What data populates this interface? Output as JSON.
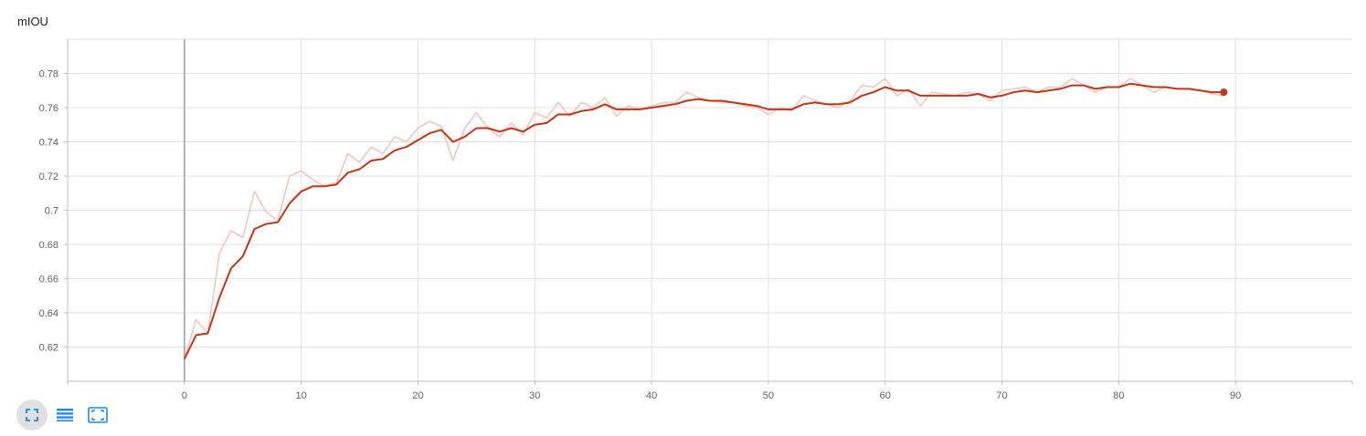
{
  "title": "mIOU",
  "toolbar": {
    "buttons": [
      {
        "name": "fit-domain",
        "icon": "fit-screen-icon",
        "active": true
      },
      {
        "name": "toggle-log",
        "icon": "lines-icon",
        "active": false
      },
      {
        "name": "toggle-expand",
        "icon": "expand-box-icon",
        "active": false
      }
    ]
  },
  "colors": {
    "smoothed": "#c23616",
    "raw": "#f2c7bd",
    "grid": "#e0e0e0",
    "axis": "#bdbdbd",
    "zero_line": "#9e9e9e",
    "tick_text": "#616161",
    "toolbar_icon": "#1e88e5"
  },
  "chart_data": {
    "type": "line",
    "title": "mIOU",
    "xlabel": "",
    "ylabel": "",
    "xlim": [
      -10,
      100
    ],
    "ylim": [
      0.6,
      0.8
    ],
    "x_ticks": [
      "0",
      "10",
      "20",
      "30",
      "40",
      "50",
      "60",
      "70",
      "80",
      "90"
    ],
    "y_ticks": [
      "0.62",
      "0.64",
      "0.66",
      "0.68",
      "0.7",
      "0.72",
      "0.74",
      "0.76",
      "0.78"
    ],
    "grid": true,
    "legend": "none",
    "series": [
      {
        "role": "raw",
        "x": [
          0,
          1,
          2,
          3,
          4,
          5,
          6,
          7,
          8,
          9,
          10,
          11,
          12,
          13,
          14,
          15,
          16,
          17,
          18,
          19,
          20,
          21,
          22,
          23,
          24,
          25,
          26,
          27,
          28,
          29,
          30,
          31,
          32,
          33,
          34,
          35,
          36,
          37,
          38,
          39,
          40,
          41,
          42,
          43,
          44,
          45,
          46,
          47,
          48,
          49,
          50,
          51,
          52,
          53,
          54,
          55,
          56,
          57,
          58,
          59,
          60,
          61,
          62,
          63,
          64,
          65,
          66,
          67,
          68,
          69,
          70,
          71,
          72,
          73,
          74,
          75,
          76,
          77,
          78,
          79,
          80,
          81,
          82,
          83,
          84,
          85,
          86,
          87,
          88,
          89
        ],
        "values": [
          0.613,
          0.636,
          0.628,
          0.675,
          0.688,
          0.684,
          0.711,
          0.699,
          0.694,
          0.72,
          0.723,
          0.718,
          0.714,
          0.716,
          0.733,
          0.728,
          0.737,
          0.733,
          0.743,
          0.74,
          0.748,
          0.752,
          0.749,
          0.729,
          0.748,
          0.757,
          0.748,
          0.743,
          0.751,
          0.744,
          0.757,
          0.754,
          0.763,
          0.755,
          0.763,
          0.76,
          0.766,
          0.755,
          0.761,
          0.759,
          0.761,
          0.763,
          0.763,
          0.769,
          0.766,
          0.764,
          0.763,
          0.763,
          0.761,
          0.76,
          0.756,
          0.76,
          0.758,
          0.767,
          0.764,
          0.762,
          0.76,
          0.764,
          0.773,
          0.772,
          0.777,
          0.767,
          0.771,
          0.761,
          0.769,
          0.768,
          0.767,
          0.769,
          0.768,
          0.764,
          0.77,
          0.771,
          0.772,
          0.769,
          0.772,
          0.772,
          0.777,
          0.773,
          0.769,
          0.772,
          0.772,
          0.777,
          0.773,
          0.769,
          0.772,
          0.771,
          0.771,
          0.77,
          0.768,
          0.767
        ]
      },
      {
        "role": "smoothed",
        "x": [
          0,
          1,
          2,
          3,
          4,
          5,
          6,
          7,
          8,
          9,
          10,
          11,
          12,
          13,
          14,
          15,
          16,
          17,
          18,
          19,
          20,
          21,
          22,
          23,
          24,
          25,
          26,
          27,
          28,
          29,
          30,
          31,
          32,
          33,
          34,
          35,
          36,
          37,
          38,
          39,
          40,
          41,
          42,
          43,
          44,
          45,
          46,
          47,
          48,
          49,
          50,
          51,
          52,
          53,
          54,
          55,
          56,
          57,
          58,
          59,
          60,
          61,
          62,
          63,
          64,
          65,
          66,
          67,
          68,
          69,
          70,
          71,
          72,
          73,
          74,
          75,
          76,
          77,
          78,
          79,
          80,
          81,
          82,
          83,
          84,
          85,
          86,
          87,
          88,
          89
        ],
        "values": [
          0.613,
          0.627,
          0.628,
          0.649,
          0.666,
          0.673,
          0.689,
          0.692,
          0.693,
          0.704,
          0.711,
          0.714,
          0.714,
          0.715,
          0.722,
          0.724,
          0.729,
          0.73,
          0.735,
          0.737,
          0.741,
          0.745,
          0.747,
          0.74,
          0.743,
          0.748,
          0.748,
          0.746,
          0.748,
          0.746,
          0.75,
          0.751,
          0.756,
          0.756,
          0.758,
          0.759,
          0.762,
          0.759,
          0.759,
          0.759,
          0.76,
          0.761,
          0.762,
          0.764,
          0.765,
          0.764,
          0.764,
          0.763,
          0.762,
          0.761,
          0.759,
          0.759,
          0.759,
          0.762,
          0.763,
          0.762,
          0.762,
          0.763,
          0.767,
          0.769,
          0.772,
          0.77,
          0.77,
          0.767,
          0.767,
          0.767,
          0.767,
          0.767,
          0.768,
          0.766,
          0.767,
          0.769,
          0.77,
          0.769,
          0.77,
          0.771,
          0.773,
          0.773,
          0.771,
          0.772,
          0.772,
          0.774,
          0.773,
          0.772,
          0.772,
          0.771,
          0.771,
          0.77,
          0.769,
          0.769
        ]
      }
    ]
  }
}
